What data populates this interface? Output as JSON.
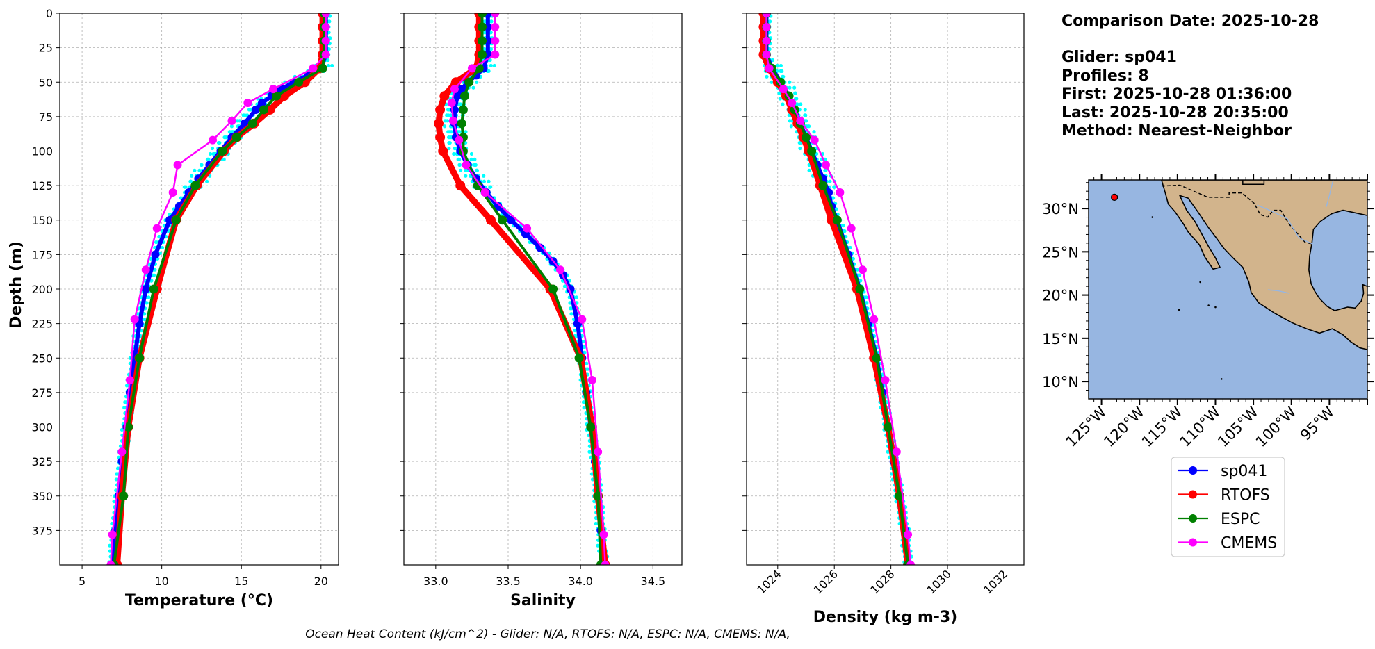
{
  "info": {
    "comparison_date": "Comparison Date: 2025-10-28",
    "glider": "Glider: sp041",
    "profiles": "Profiles: 8",
    "first": "First: 2025-10-28 01:36:00",
    "last": "Last: 2025-10-28 20:35:00",
    "method": "Method: Nearest-Neighbor"
  },
  "footer": "Ocean Heat Content (kJ/cm^2) - Glider: N/A,  RTOFS: N/A,  ESPC: N/A,  CMEMS: N/A,",
  "colors": {
    "sp041": "#0000ff",
    "RTOFS": "#ff0000",
    "ESPC": "#008000",
    "CMEMS": "#ff00ff",
    "glider_profiles": "#00ffff",
    "ocean": "#97b6e1",
    "land": "#d2b48c"
  },
  "legend": [
    "sp041",
    "RTOFS",
    "ESPC",
    "CMEMS"
  ],
  "map": {
    "lat_labels": [
      "30°N",
      "25°N",
      "20°N",
      "15°N",
      "10°N"
    ],
    "lon_labels": [
      "125°W",
      "120°W",
      "115°W",
      "110°W",
      "105°W",
      "100°W",
      "95°W"
    ],
    "glider_location": {
      "lon": -123.3,
      "lat": 31.3
    }
  },
  "chart_data": [
    {
      "type": "line",
      "xlabel": "Temperature (°C)",
      "ylabel": "Depth (m)",
      "xlim": [
        3.6,
        21.1
      ],
      "ylim": [
        400,
        0
      ],
      "xticks": [
        5,
        10,
        15,
        20
      ],
      "yticks": [
        0,
        25,
        50,
        75,
        100,
        125,
        150,
        175,
        200,
        225,
        250,
        275,
        300,
        325,
        350,
        375
      ],
      "grid": true,
      "series": [
        {
          "name": "sp041",
          "depth": [
            0,
            10,
            20,
            30,
            40,
            45,
            50,
            55,
            60,
            65,
            70,
            80,
            90,
            100,
            110,
            120,
            130,
            140,
            150,
            175,
            200,
            225,
            250,
            275,
            300,
            325,
            350,
            375,
            400
          ],
          "values": [
            20.3,
            20.3,
            20.3,
            20.3,
            20.0,
            19.2,
            18.3,
            17.5,
            16.9,
            16.3,
            15.9,
            15.2,
            14.4,
            13.7,
            13.0,
            12.3,
            11.7,
            11.1,
            10.5,
            9.6,
            9.0,
            8.6,
            8.3,
            8.0,
            7.8,
            7.5,
            7.3,
            7.1,
            6.9
          ]
        },
        {
          "name": "RTOFS",
          "depth": [
            0,
            10,
            20,
            30,
            40,
            50,
            60,
            70,
            80,
            90,
            100,
            125,
            150,
            200,
            250,
            300,
            350,
            400
          ],
          "values": [
            20.1,
            20.1,
            20.1,
            20.1,
            19.9,
            19.0,
            17.7,
            16.8,
            15.8,
            14.7,
            13.9,
            12.2,
            10.9,
            9.7,
            8.6,
            7.9,
            7.5,
            7.2
          ]
        },
        {
          "name": "ESPC",
          "depth": [
            0,
            10,
            20,
            30,
            40,
            50,
            60,
            70,
            80,
            90,
            100,
            125,
            150,
            200,
            250,
            300,
            350,
            400
          ],
          "values": [
            20.2,
            20.2,
            20.2,
            20.2,
            20.1,
            18.6,
            17.2,
            16.4,
            15.7,
            14.7,
            13.8,
            12.1,
            10.9,
            9.5,
            8.6,
            7.9,
            7.6,
            7.0
          ]
        },
        {
          "name": "CMEMS",
          "depth": [
            0,
            10,
            20,
            30,
            40,
            55,
            65,
            78,
            92,
            110,
            130,
            156,
            186,
            222,
            266,
            318,
            378,
            400
          ],
          "values": [
            20.3,
            20.3,
            20.3,
            20.3,
            19.5,
            17.0,
            15.4,
            14.4,
            13.2,
            11.0,
            10.7,
            9.7,
            9.0,
            8.3,
            8.0,
            7.5,
            6.9,
            6.8
          ]
        }
      ]
    },
    {
      "type": "line",
      "xlabel": "Salinity",
      "xlim": [
        32.78,
        34.7
      ],
      "ylim": [
        400,
        0
      ],
      "xticks": [
        33.0,
        33.5,
        34.0,
        34.5
      ],
      "xtick_labels": [
        "33.0",
        "33.5",
        "34.0",
        "34.5"
      ],
      "grid": true,
      "series": [
        {
          "name": "sp041",
          "depth": [
            0,
            10,
            20,
            30,
            40,
            45,
            50,
            55,
            60,
            70,
            80,
            90,
            100,
            110,
            120,
            130,
            140,
            150,
            160,
            170,
            180,
            190,
            200,
            225,
            250,
            275,
            300,
            325,
            350,
            375,
            400
          ],
          "values": [
            33.36,
            33.36,
            33.36,
            33.36,
            33.33,
            33.28,
            33.22,
            33.18,
            33.15,
            33.13,
            33.13,
            33.14,
            33.17,
            33.22,
            33.28,
            33.35,
            33.43,
            33.52,
            33.62,
            33.72,
            33.81,
            33.88,
            33.93,
            33.98,
            34.01,
            34.04,
            34.07,
            34.1,
            34.12,
            34.14,
            34.16
          ]
        },
        {
          "name": "RTOFS",
          "depth": [
            0,
            10,
            20,
            30,
            40,
            50,
            60,
            70,
            80,
            90,
            100,
            125,
            150,
            200,
            250,
            300,
            350,
            400
          ],
          "values": [
            33.3,
            33.3,
            33.3,
            33.3,
            33.28,
            33.14,
            33.06,
            33.03,
            33.02,
            33.03,
            33.05,
            33.17,
            33.38,
            33.79,
            34.0,
            34.08,
            34.12,
            34.17
          ]
        },
        {
          "name": "ESPC",
          "depth": [
            0,
            10,
            20,
            30,
            40,
            50,
            60,
            70,
            80,
            90,
            100,
            125,
            150,
            200,
            250,
            300,
            350,
            400
          ],
          "values": [
            33.32,
            33.32,
            33.32,
            33.32,
            33.3,
            33.23,
            33.2,
            33.19,
            33.18,
            33.19,
            33.19,
            33.29,
            33.46,
            33.81,
            33.99,
            34.07,
            34.12,
            34.14
          ]
        },
        {
          "name": "CMEMS",
          "depth": [
            0,
            10,
            20,
            30,
            40,
            55,
            65,
            78,
            92,
            110,
            130,
            156,
            186,
            222,
            266,
            318,
            378,
            400
          ],
          "values": [
            33.41,
            33.41,
            33.41,
            33.41,
            33.25,
            33.13,
            33.11,
            33.12,
            33.16,
            33.21,
            33.34,
            33.63,
            33.86,
            34.01,
            34.08,
            34.12,
            34.16,
            34.17
          ]
        }
      ]
    },
    {
      "type": "line",
      "xlabel": "Density (kg m-3)",
      "xlim": [
        1022.9,
        1032.7
      ],
      "ylim": [
        400,
        0
      ],
      "xticks": [
        1024,
        1026,
        1028,
        1030,
        1032
      ],
      "grid": true,
      "series": [
        {
          "name": "sp041",
          "depth": [
            0,
            10,
            20,
            30,
            40,
            50,
            60,
            70,
            80,
            90,
            100,
            110,
            120,
            130,
            140,
            150,
            175,
            200,
            225,
            250,
            275,
            300,
            325,
            350,
            375,
            400
          ],
          "values": [
            1023.6,
            1023.6,
            1023.6,
            1023.6,
            1023.8,
            1024.1,
            1024.4,
            1024.6,
            1024.8,
            1025.0,
            1025.2,
            1025.4,
            1025.6,
            1025.8,
            1025.9,
            1026.1,
            1026.5,
            1026.9,
            1027.2,
            1027.5,
            1027.7,
            1027.9,
            1028.1,
            1028.3,
            1028.5,
            1028.6
          ]
        },
        {
          "name": "RTOFS",
          "depth": [
            0,
            10,
            20,
            30,
            40,
            50,
            60,
            70,
            80,
            90,
            100,
            125,
            150,
            200,
            250,
            300,
            350,
            400
          ],
          "values": [
            1023.5,
            1023.5,
            1023.5,
            1023.5,
            1023.7,
            1024.0,
            1024.3,
            1024.5,
            1024.7,
            1024.9,
            1025.1,
            1025.5,
            1025.9,
            1026.8,
            1027.4,
            1027.9,
            1028.3,
            1028.6
          ]
        },
        {
          "name": "ESPC",
          "depth": [
            0,
            10,
            20,
            30,
            40,
            50,
            60,
            70,
            80,
            90,
            100,
            125,
            150,
            200,
            250,
            300,
            350,
            400
          ],
          "values": [
            1023.6,
            1023.6,
            1023.6,
            1023.6,
            1023.8,
            1024.1,
            1024.4,
            1024.6,
            1024.8,
            1025.0,
            1025.2,
            1025.6,
            1026.1,
            1026.9,
            1027.5,
            1027.9,
            1028.3,
            1028.6
          ]
        },
        {
          "name": "CMEMS",
          "depth": [
            0,
            10,
            20,
            30,
            40,
            55,
            65,
            78,
            92,
            110,
            130,
            156,
            186,
            222,
            266,
            318,
            378,
            400
          ],
          "values": [
            1023.6,
            1023.6,
            1023.6,
            1023.6,
            1023.7,
            1024.2,
            1024.5,
            1024.8,
            1025.3,
            1025.7,
            1026.2,
            1026.6,
            1027.0,
            1027.4,
            1027.8,
            1028.2,
            1028.6,
            1028.7
          ]
        }
      ]
    }
  ]
}
